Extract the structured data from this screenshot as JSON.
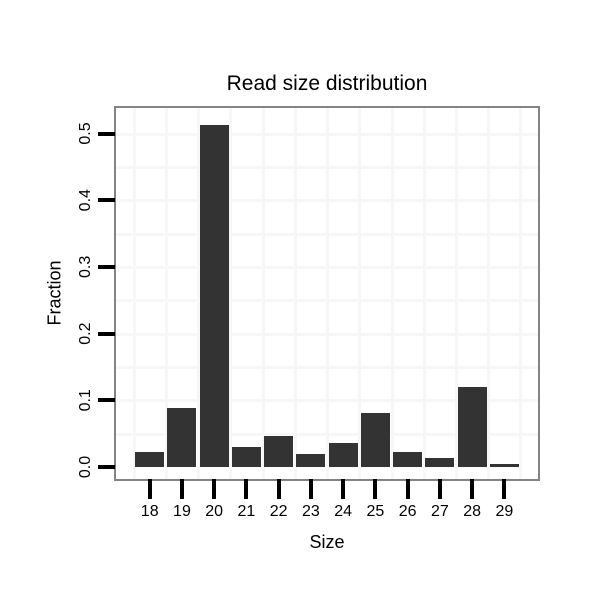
{
  "chart_data": {
    "type": "bar",
    "title": "Read size distribution",
    "xlabel": "Size",
    "ylabel": "Fraction",
    "categories": [
      "18",
      "19",
      "20",
      "21",
      "22",
      "23",
      "24",
      "25",
      "26",
      "27",
      "28",
      "29"
    ],
    "values": [
      0.023,
      0.088,
      0.513,
      0.03,
      0.047,
      0.02,
      0.036,
      0.081,
      0.023,
      0.014,
      0.12,
      0.005
    ],
    "yticks": [
      0.0,
      0.1,
      0.2,
      0.3,
      0.4,
      0.5
    ],
    "ytick_labels": [
      "0.0",
      "0.1",
      "0.2",
      "0.3",
      "0.4",
      "0.5"
    ],
    "ylim": [
      -0.026,
      0.538
    ],
    "grid": "on",
    "legend": "none",
    "colors": {
      "bar": "#333333",
      "panel_border": "#848484",
      "gridline": "#f7f7f7",
      "tick": "#000000",
      "text": "#000000",
      "background": "#ffffff"
    }
  }
}
